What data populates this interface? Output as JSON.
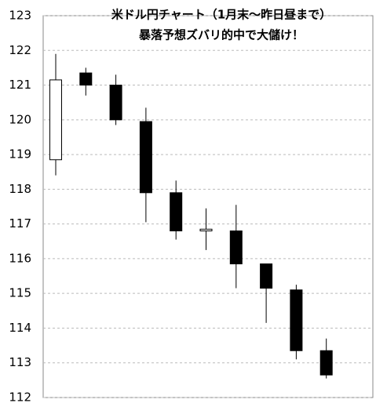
{
  "chart_data": {
    "type": "candlestick",
    "title": "米ドル円チャート（1月末～昨日昼まで）",
    "subtitle": "暴落予想ズバリ的中で大儲け！",
    "open": [
      118.85,
      121.35,
      121.0,
      119.95,
      117.9,
      116.8,
      116.8,
      115.85,
      115.1,
      113.35
    ],
    "high": [
      121.9,
      121.5,
      121.3,
      120.35,
      118.25,
      117.45,
      117.55,
      115.85,
      115.25,
      113.7
    ],
    "low": [
      118.4,
      120.7,
      119.85,
      117.05,
      116.55,
      116.25,
      115.15,
      114.15,
      113.1,
      112.55
    ],
    "close": [
      121.15,
      121.0,
      120.0,
      117.9,
      116.8,
      116.85,
      115.85,
      115.15,
      113.35,
      112.65
    ],
    "up_color": "#ffffff",
    "down_color": "#000000",
    "ylim": [
      112,
      123
    ],
    "yticks": [
      112,
      113,
      114,
      115,
      116,
      117,
      118,
      119,
      120,
      121,
      122,
      123
    ],
    "grid": true
  }
}
